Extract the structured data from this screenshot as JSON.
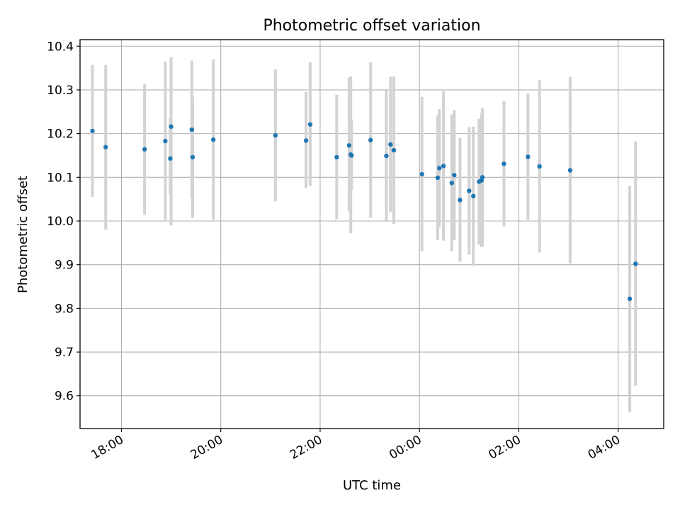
{
  "chart_data": {
    "type": "scatter",
    "title": "Photometric offset variation",
    "xlabel": "UTC time",
    "ylabel": "Photometric offset",
    "x_axis_type": "time",
    "xlim": [
      "17:10",
      "04:55"
    ],
    "ylim": [
      9.525,
      10.415
    ],
    "grid": true,
    "x_ticks": [
      "18:00",
      "20:00",
      "22:00",
      "00:00",
      "02:00",
      "04:00"
    ],
    "y_ticks": [
      "9.6",
      "9.7",
      "9.8",
      "9.9",
      "10.0",
      "10.1",
      "10.2",
      "10.3",
      "10.4"
    ],
    "errorbar_color": "#d3d3d3",
    "marker_color": "#1f77b4",
    "points": [
      {
        "x": "17:25",
        "y": 10.206,
        "err_low": 10.055,
        "err_high": 10.357
      },
      {
        "x": "17:41",
        "y": 10.169,
        "err_low": 9.98,
        "err_high": 10.357
      },
      {
        "x": "18:28",
        "y": 10.164,
        "err_low": 10.014,
        "err_high": 10.314
      },
      {
        "x": "18:53",
        "y": 10.183,
        "err_low": 10.002,
        "err_high": 10.365
      },
      {
        "x": "18:59",
        "y": 10.143,
        "err_low": 10.06,
        "err_high": 10.235
      },
      {
        "x": "19:00",
        "y": 10.216,
        "err_low": 9.99,
        "err_high": 10.375
      },
      {
        "x": "19:25",
        "y": 10.209,
        "err_low": 10.052,
        "err_high": 10.367
      },
      {
        "x": "19:26",
        "y": 10.146,
        "err_low": 10.007,
        "err_high": 10.285
      },
      {
        "x": "19:51",
        "y": 10.186,
        "err_low": 10.003,
        "err_high": 10.37
      },
      {
        "x": "21:06",
        "y": 10.196,
        "err_low": 10.045,
        "err_high": 10.347
      },
      {
        "x": "21:43",
        "y": 10.184,
        "err_low": 10.075,
        "err_high": 10.295
      },
      {
        "x": "21:48",
        "y": 10.221,
        "err_low": 10.08,
        "err_high": 10.363
      },
      {
        "x": "22:20",
        "y": 10.146,
        "err_low": 10.004,
        "err_high": 10.289
      },
      {
        "x": "22:35",
        "y": 10.173,
        "err_low": 10.022,
        "err_high": 10.328
      },
      {
        "x": "22:37",
        "y": 10.152,
        "err_low": 9.972,
        "err_high": 10.331
      },
      {
        "x": "22:38",
        "y": 10.15,
        "err_low": 10.07,
        "err_high": 10.23
      },
      {
        "x": "23:01",
        "y": 10.185,
        "err_low": 10.007,
        "err_high": 10.363
      },
      {
        "x": "23:20",
        "y": 10.149,
        "err_low": 10.001,
        "err_high": 10.299
      },
      {
        "x": "23:25",
        "y": 10.175,
        "err_low": 10.02,
        "err_high": 10.33
      },
      {
        "x": "23:29",
        "y": 10.162,
        "err_low": 9.993,
        "err_high": 10.331
      },
      {
        "x": "00:03",
        "y": 10.107,
        "err_low": 9.931,
        "err_high": 10.284
      },
      {
        "x": "00:22",
        "y": 10.099,
        "err_low": 9.956,
        "err_high": 10.242
      },
      {
        "x": "00:24",
        "y": 10.121,
        "err_low": 9.986,
        "err_high": 10.256
      },
      {
        "x": "00:29",
        "y": 10.126,
        "err_low": 9.955,
        "err_high": 10.297
      },
      {
        "x": "00:39",
        "y": 10.087,
        "err_low": 9.931,
        "err_high": 10.244
      },
      {
        "x": "00:42",
        "y": 10.105,
        "err_low": 9.956,
        "err_high": 10.254
      },
      {
        "x": "00:49",
        "y": 10.048,
        "err_low": 9.907,
        "err_high": 10.19
      },
      {
        "x": "01:00",
        "y": 10.069,
        "err_low": 9.923,
        "err_high": 10.215
      },
      {
        "x": "01:05",
        "y": 10.057,
        "err_low": 9.898,
        "err_high": 10.216
      },
      {
        "x": "01:12",
        "y": 10.09,
        "err_low": 9.946,
        "err_high": 10.234
      },
      {
        "x": "01:15",
        "y": 10.093,
        "err_low": 9.94,
        "err_high": 10.247
      },
      {
        "x": "01:16",
        "y": 10.1,
        "err_low": 9.942,
        "err_high": 10.258
      },
      {
        "x": "01:42",
        "y": 10.131,
        "err_low": 9.988,
        "err_high": 10.275
      },
      {
        "x": "02:11",
        "y": 10.147,
        "err_low": 10.003,
        "err_high": 10.292
      },
      {
        "x": "02:25",
        "y": 10.125,
        "err_low": 9.928,
        "err_high": 10.322
      },
      {
        "x": "03:02",
        "y": 10.116,
        "err_low": 9.903,
        "err_high": 10.33
      },
      {
        "x": "04:14",
        "y": 9.822,
        "err_low": 9.562,
        "err_high": 10.08
      },
      {
        "x": "04:21",
        "y": 9.902,
        "err_low": 9.623,
        "err_high": 10.182
      }
    ]
  }
}
